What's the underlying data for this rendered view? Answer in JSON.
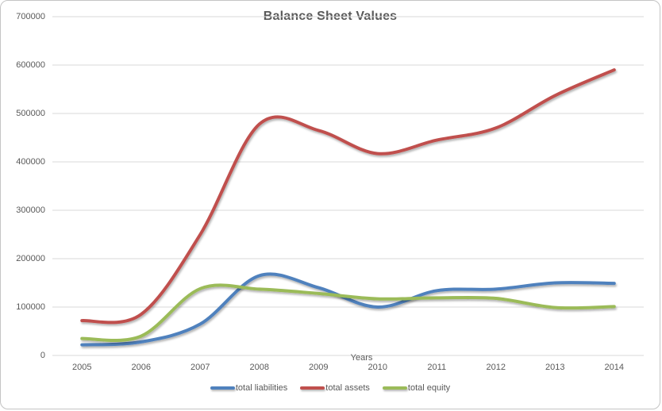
{
  "chart_data": {
    "type": "line",
    "title": "Balance Sheet Values",
    "xlabel": "Years",
    "ylabel": "",
    "categories": [
      "2005",
      "2006",
      "2007",
      "2008",
      "2009",
      "2010",
      "2011",
      "2012",
      "2013",
      "2014"
    ],
    "series": [
      {
        "name": "total liabilities",
        "color": "#4F81BD",
        "values": [
          22000,
          28000,
          65000,
          165000,
          140000,
          100000,
          134000,
          137000,
          150000,
          149000
        ]
      },
      {
        "name": "total assets",
        "color": "#C0504D",
        "values": [
          72000,
          85000,
          250000,
          478000,
          465000,
          417000,
          445000,
          470000,
          537000,
          590000
        ]
      },
      {
        "name": "total equity",
        "color": "#9BBB59",
        "values": [
          35000,
          40000,
          138000,
          137000,
          128000,
          117000,
          119000,
          118000,
          99000,
          101000
        ]
      }
    ],
    "ylim": [
      0,
      700000
    ],
    "ytick_step": 100000,
    "yticks": [
      "0",
      "100000",
      "200000",
      "300000",
      "400000",
      "500000",
      "600000",
      "700000"
    ],
    "grid": "horizontal",
    "gridline_color": "#D9D9D9",
    "smooth": true,
    "legend_position": "bottom",
    "text_color": "#595959",
    "background": "#FFFFFF"
  }
}
